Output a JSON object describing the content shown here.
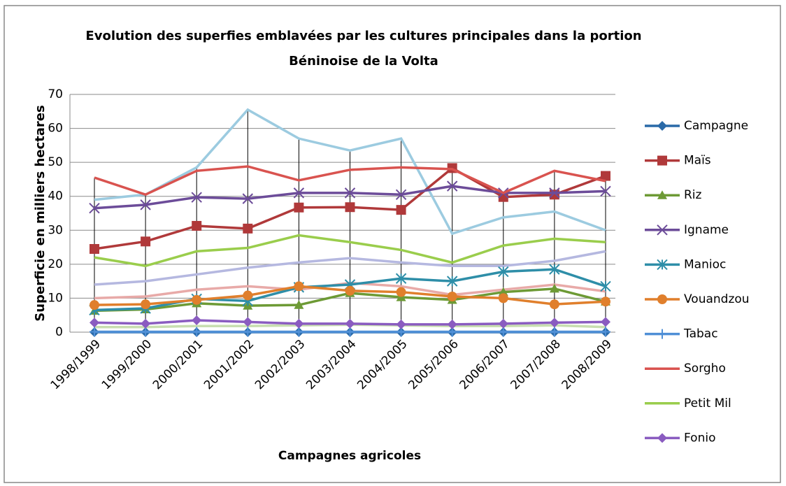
{
  "chart_data": {
    "type": "line",
    "title": "Evolution des superfies emblavées par les cultures principales dans la portion",
    "subtitle": "Béninoise de la Volta",
    "x_label": "Campagnes agricoles",
    "y_label": "Superficie en milliers hectares",
    "categories": [
      "1998/1999",
      "1999/2000",
      "2000/2001",
      "2001/2002",
      "2002/2003",
      "2003/2004",
      "2004/2005",
      "2005/2006",
      "2006/2007",
      "2007/2008",
      "2008/2009"
    ],
    "ylim": [
      0,
      70
    ],
    "yticks": [
      0,
      10,
      20,
      30,
      40,
      50,
      60,
      70
    ],
    "grid": true,
    "legend": "right",
    "drop_lines": true,
    "series": [
      {
        "color": "#9ccbe0",
        "marker": "none",
        "values": [
          39,
          40.5,
          48.5,
          65.5,
          57,
          53.5,
          57,
          29,
          33.8,
          35.5,
          30
        ]
      },
      {
        "color": "#b5b8e0",
        "marker": "none",
        "values": [
          14,
          15,
          17,
          19,
          20.5,
          21.8,
          20.5,
          19.5,
          19.5,
          21,
          23.8
        ]
      },
      {
        "color": "#e8aaa8",
        "marker": "none",
        "values": [
          10,
          10.5,
          12.5,
          13.5,
          12.5,
          14.5,
          13.5,
          11,
          12.5,
          14,
          12
        ]
      },
      {
        "color": "#c8deb0",
        "marker": "none",
        "values": [
          1.5,
          1.5,
          1.8,
          1.8,
          2,
          2.2,
          2,
          1.8,
          1.8,
          2,
          1.5
        ]
      },
      {
        "name": "Campagne",
        "color": "#2a6aa8",
        "marker": "diamond",
        "values": [
          0,
          0,
          0,
          0,
          0,
          0,
          0,
          0,
          0,
          0,
          0
        ]
      },
      {
        "name": "Maïs",
        "color": "#b0393a",
        "marker": "square",
        "values": [
          24.5,
          26.7,
          31.3,
          30.5,
          36.7,
          36.8,
          36,
          48.3,
          39.8,
          40.5,
          46
        ]
      },
      {
        "name": "Riz",
        "color": "#6d9a35",
        "marker": "triangle",
        "values": [
          6.3,
          6.7,
          8.5,
          7.8,
          8,
          11.5,
          10.3,
          9.5,
          11.8,
          12.8,
          9
        ]
      },
      {
        "name": "Igname",
        "color": "#6c4c99",
        "marker": "x",
        "values": [
          36.5,
          37.5,
          39.7,
          39.3,
          41,
          41,
          40.5,
          43,
          41,
          41,
          41.5
        ]
      },
      {
        "name": "Manioc",
        "color": "#2e8ea8",
        "marker": "star",
        "values": [
          6.5,
          7,
          9.8,
          9.2,
          13.2,
          14,
          15.8,
          15,
          17.8,
          18.5,
          13.5
        ]
      },
      {
        "name": "Vouandzou",
        "color": "#e07f2c",
        "marker": "circle",
        "values": [
          8,
          8.2,
          9.5,
          10.8,
          13.5,
          12.2,
          11.8,
          10.5,
          10,
          8.2,
          9
        ]
      },
      {
        "name": "Tabac",
        "color": "#4f8fd6",
        "marker": "plus",
        "values": [
          0.1,
          0.1,
          0.1,
          0.1,
          0.1,
          0.1,
          0.1,
          0.1,
          0.1,
          0.1,
          0.1
        ]
      },
      {
        "name": "Sorgho",
        "color": "#d9534f",
        "marker": "none",
        "values": [
          45.5,
          40.5,
          47.5,
          48.8,
          44.7,
          47.8,
          48.5,
          48,
          41,
          47.5,
          44.5
        ]
      },
      {
        "name": "Petit Mil",
        "color": "#9acd4c",
        "marker": "none",
        "values": [
          22,
          19.5,
          23.8,
          24.8,
          28.5,
          26.5,
          24.2,
          20.5,
          25.5,
          27.5,
          26.5
        ]
      },
      {
        "name": "Fonio",
        "color": "#8a5cc0",
        "marker": "diamond",
        "values": [
          2.8,
          2.5,
          3.5,
          3,
          2.5,
          2.5,
          2.3,
          2.3,
          2.5,
          2.8,
          3
        ]
      }
    ]
  }
}
